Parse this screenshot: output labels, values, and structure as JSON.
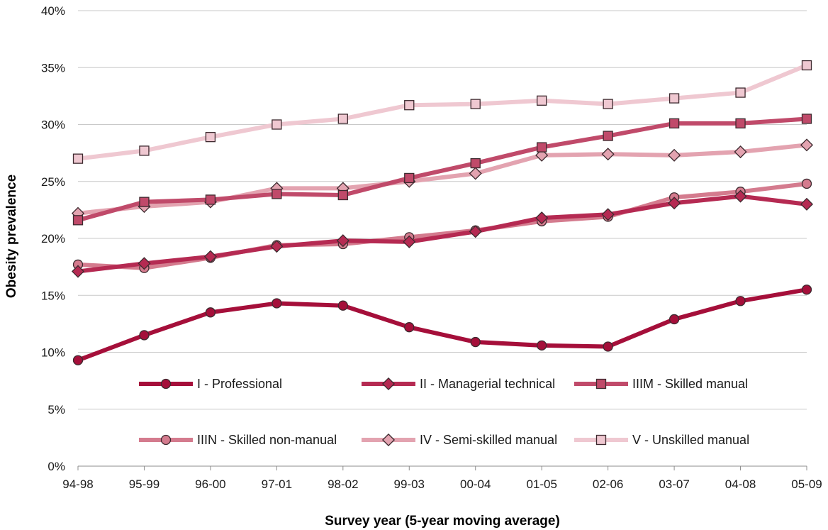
{
  "chart_data": {
    "type": "line",
    "title": "",
    "xlabel": "Survey year (5-year moving average)",
    "ylabel": "Obesity prevalence",
    "categories": [
      "94-98",
      "95-99",
      "96-00",
      "97-01",
      "98-02",
      "99-03",
      "00-04",
      "01-05",
      "02-06",
      "03-07",
      "04-08",
      "05-09"
    ],
    "yticks": [
      "0%",
      "5%",
      "10%",
      "15%",
      "20%",
      "25%",
      "30%",
      "35%",
      "40%"
    ],
    "ylim": [
      0,
      40
    ],
    "y_unit": "percent",
    "grid": "horizontal",
    "legend_position": "inside-bottom",
    "series": [
      {
        "name": "I - Professional",
        "marker": "circle",
        "color": "#a50f3a",
        "values": [
          9.3,
          11.5,
          13.5,
          14.3,
          14.1,
          12.2,
          10.9,
          10.6,
          10.5,
          12.9,
          14.5,
          15.5
        ]
      },
      {
        "name": "II - Managerial technical",
        "marker": "diamond",
        "color": "#b52a52",
        "values": [
          17.1,
          17.8,
          18.4,
          19.3,
          19.8,
          19.7,
          20.6,
          21.8,
          22.1,
          23.1,
          23.7,
          23.0
        ]
      },
      {
        "name": "IIIM - Skilled manual",
        "marker": "square",
        "color": "#c04a6a",
        "values": [
          21.6,
          23.2,
          23.4,
          23.9,
          23.8,
          25.3,
          26.6,
          28.0,
          29.0,
          30.1,
          30.1,
          30.5
        ]
      },
      {
        "name": "IIIN - Skilled non-manual",
        "marker": "circle",
        "color": "#d47b8e",
        "values": [
          17.7,
          17.4,
          18.3,
          19.4,
          19.5,
          20.1,
          20.7,
          21.5,
          21.9,
          23.6,
          24.1,
          24.8
        ]
      },
      {
        "name": "IV - Semi-skilled manual",
        "marker": "diamond",
        "color": "#e3a3b0",
        "values": [
          22.2,
          22.8,
          23.2,
          24.4,
          24.4,
          25.0,
          25.7,
          27.3,
          27.4,
          27.3,
          27.6,
          28.2
        ]
      },
      {
        "name": "V - Unskilled manual",
        "marker": "square",
        "color": "#efc8d1",
        "values": [
          27.0,
          27.7,
          28.9,
          30.0,
          30.5,
          31.7,
          31.8,
          32.1,
          31.8,
          32.3,
          32.8,
          35.2
        ]
      }
    ]
  }
}
